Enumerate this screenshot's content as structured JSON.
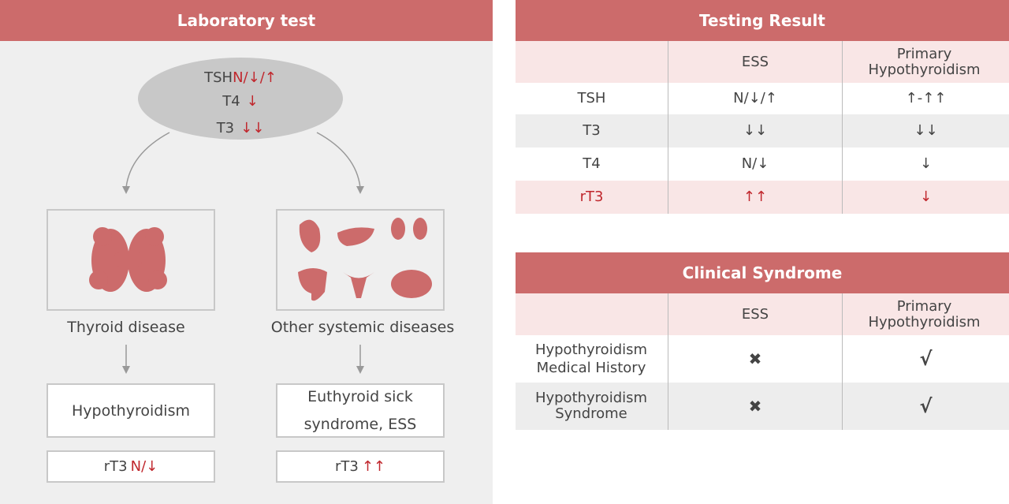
{
  "left": {
    "title": "Laboratory test",
    "oval": [
      {
        "label": "TSH",
        "value": "N/↓/↑"
      },
      {
        "label": "T4",
        "value": "↓"
      },
      {
        "label": "T3",
        "value": "↓↓"
      }
    ],
    "branches": [
      {
        "caption": "Thyroid disease",
        "result": "Hypothyroidism",
        "rt3_label": "rT3",
        "rt3_value": "N/↓"
      },
      {
        "caption": "Other systemic diseases",
        "result": "Euthyroid sick syndrome, ESS",
        "rt3_label": "rT3",
        "rt3_value": "↑↑"
      }
    ]
  },
  "testing_result": {
    "title": "Testing Result",
    "columns": [
      "ESS",
      "Primary Hypothyroidism"
    ],
    "rows": [
      [
        "TSH",
        "N/↓/↑",
        "↑-↑↑"
      ],
      [
        "T3",
        "↓↓",
        "↓↓"
      ],
      [
        "T4",
        "N/↓",
        "↓"
      ],
      [
        "rT3",
        "↑↑",
        "↓"
      ]
    ]
  },
  "clinical_syndrome": {
    "title": "Clinical Syndrome",
    "columns": [
      "ESS",
      "Primary Hypothyroidism"
    ],
    "rows": [
      [
        "Hypothyroidism Medical History",
        "✖",
        "√"
      ],
      [
        "Hypothyroidism Syndrome",
        "✖",
        "√"
      ]
    ]
  }
}
